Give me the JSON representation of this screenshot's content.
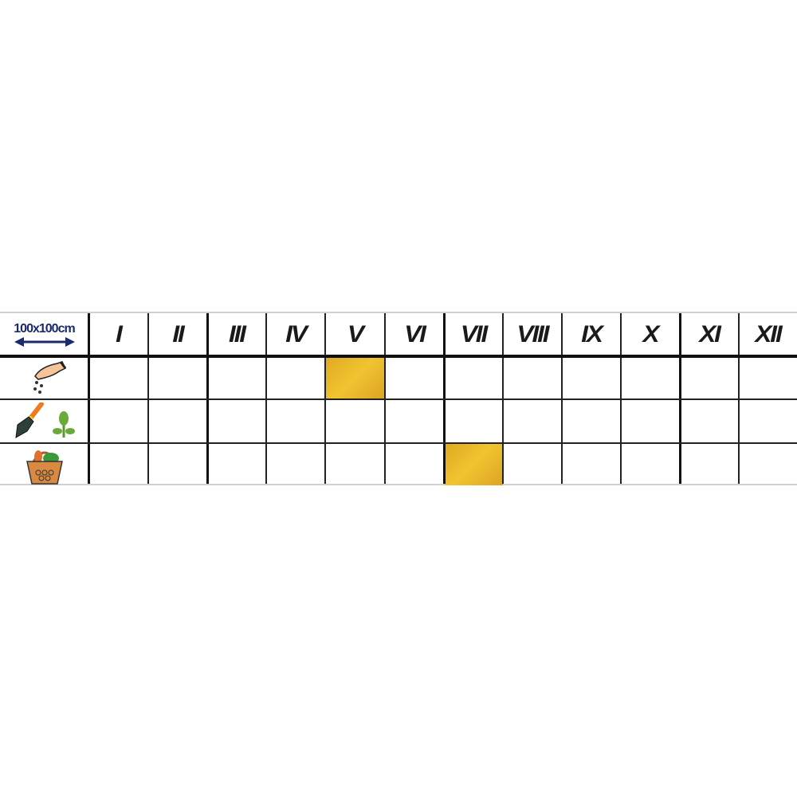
{
  "header": {
    "spacing_label": "100x100cm",
    "spacing_icon": "double-arrow-icon",
    "months": [
      "I",
      "II",
      "III",
      "IV",
      "V",
      "VI",
      "VII",
      "VIII",
      "IX",
      "X",
      "XI",
      "XII"
    ]
  },
  "rows": [
    {
      "name": "sowing",
      "icon": "hand-sowing-seeds-icon",
      "highlighted_months": [
        "V"
      ]
    },
    {
      "name": "planting",
      "icon": "trowel-seedling-icon",
      "highlighted_months": []
    },
    {
      "name": "harvest",
      "icon": "harvest-basket-icon",
      "highlighted_months": [
        "VII"
      ]
    }
  ],
  "colors": {
    "highlight": "#e8b425",
    "spacing_label": "#1a2a6c",
    "grid": "#222222"
  }
}
